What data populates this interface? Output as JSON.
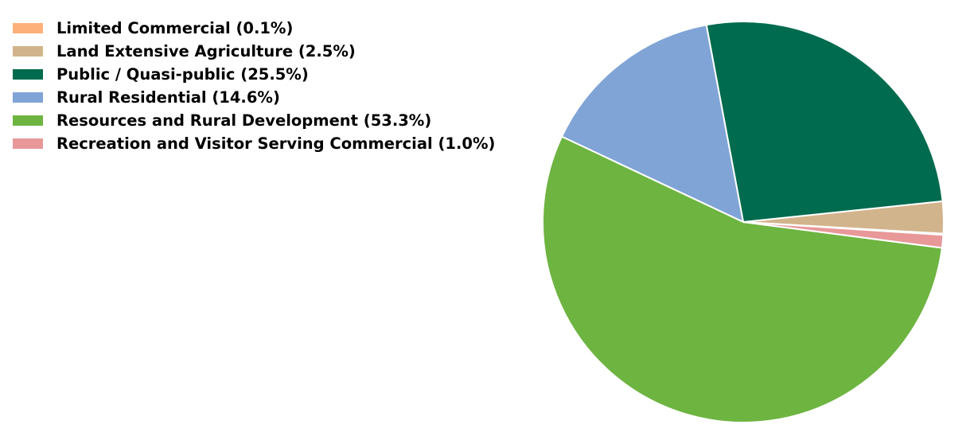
{
  "chart_data": {
    "type": "pie",
    "title": "",
    "legend_position": "top-left",
    "slices": [
      {
        "label": "Limited Commercial (0.1%)",
        "value": 0.1,
        "color": "#FDB07A"
      },
      {
        "label": "Land Extensive Agriculture (2.5%)",
        "value": 2.5,
        "color": "#D2B48C"
      },
      {
        "label": "Public / Quasi-public (25.5%)",
        "value": 25.5,
        "color": "#006B4E"
      },
      {
        "label": "Rural Residential (14.6%)",
        "value": 14.6,
        "color": "#80A4D6"
      },
      {
        "label": "Resources and Rural Development (53.3%)",
        "value": 53.3,
        "color": "#6EB441"
      },
      {
        "label": "Recreation and Visitor Serving Commercial (1.0%)",
        "value": 1.0,
        "color": "#E89898"
      }
    ]
  }
}
